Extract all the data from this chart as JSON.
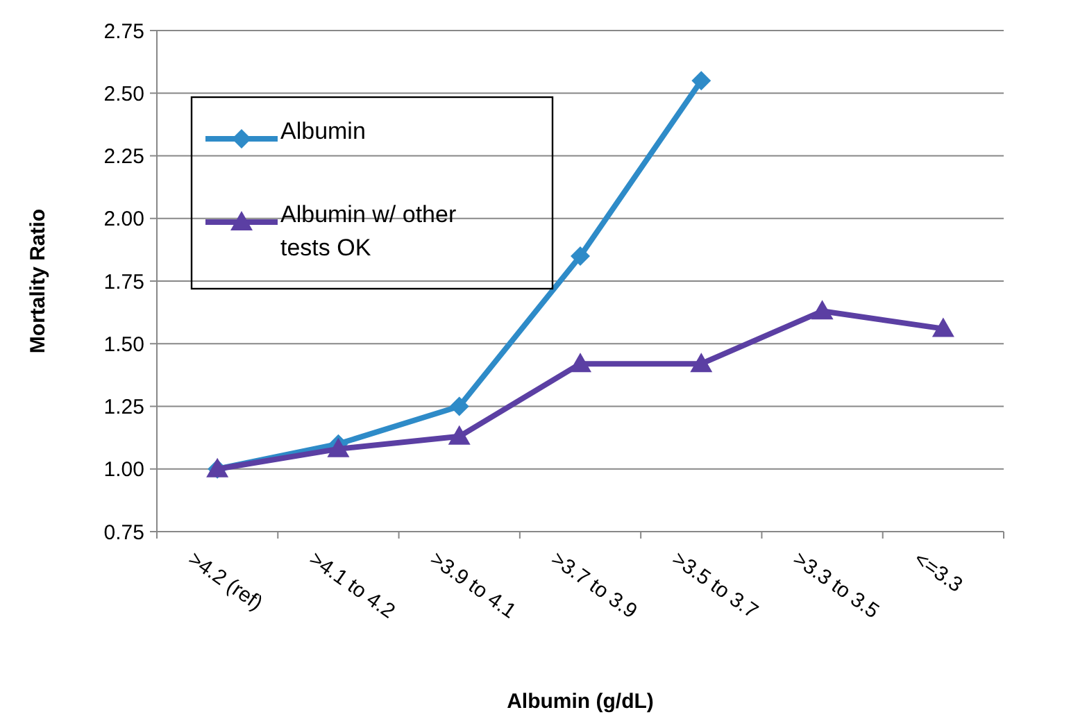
{
  "chart_data": {
    "type": "line",
    "xlabel": "Albumin (g/dL)",
    "ylabel": "Mortality Ratio",
    "categories": [
      ">4.2 (ref)",
      ">4.1 to 4.2",
      ">3.9 to 4.1",
      ">3.7 to 3.9",
      ">3.5 to 3.7",
      ">3.3 to 3.5",
      "<=3.3"
    ],
    "series": [
      {
        "name": "Albumin",
        "color": "#2e8bc8",
        "marker": "diamond",
        "values": [
          1.0,
          1.1,
          1.25,
          1.85,
          2.55,
          null,
          null
        ]
      },
      {
        "name": "Albumin w/ other tests OK",
        "color": "#5b3fa3",
        "marker": "triangle",
        "values": [
          1.0,
          1.08,
          1.13,
          1.42,
          1.42,
          1.63,
          1.56
        ]
      }
    ],
    "ylim": [
      0.75,
      2.75
    ],
    "yticks": [
      0.75,
      {
        "value": 1,
        "label": "1.00"
      },
      1.25,
      {
        "value": 1.5,
        "label": "1.50"
      },
      1.75,
      {
        "value": 2,
        "label": "2.00"
      },
      2.25,
      {
        "value": 2.5,
        "label": "2.50"
      },
      2.75
    ],
    "grid": "y",
    "legend": "top left",
    "line_style": "solid"
  }
}
